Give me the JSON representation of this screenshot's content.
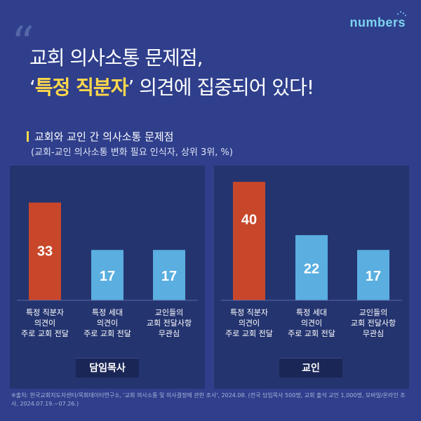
{
  "logo": {
    "text": "numbers"
  },
  "headline": {
    "quote_mark": "“",
    "line1": "교회 의사소통 문제점,",
    "line2_prefix": "‘",
    "line2_highlight": "특정 직분자",
    "line2_suffix": "’ 의견에 집중되어 있다!"
  },
  "section": {
    "title": "교회와 교인 간 의사소통 문제점",
    "subtitle": "(교회-교인 의사소통 변화 필요 인식자, 상위 3위, %)"
  },
  "colors": {
    "orange": "#c8472a",
    "blue": "#5aaee0",
    "background": "#2f3f8c",
    "panel": "#24346f",
    "highlight": "#ffd84a"
  },
  "chart_data": [
    {
      "type": "bar",
      "group": "담임목사",
      "categories": [
        "특정 직분자\n의견이\n주로 교회 전달",
        "특정 세대\n의견이\n주로 교회 전달",
        "교인들의\n교회 전달사항\n무관심"
      ],
      "values": [
        33,
        17,
        17
      ],
      "ylim": [
        0,
        45
      ]
    },
    {
      "type": "bar",
      "group": "교인",
      "categories": [
        "특정 직분자\n의견이\n주로 교회 전달",
        "특정 세대\n의견이\n주로 교회 전달",
        "교인들의\n교회 전달사항\n무관심"
      ],
      "values": [
        40,
        22,
        17
      ],
      "ylim": [
        0,
        45
      ]
    }
  ],
  "footnote": "※출처: 한국교회지도자센터/목회데이터연구소, '교회 의사소통 및 의사결정에 관한 조사', 2024.08. (전국 담임목사 500명, 교회 출석 교인 1,000명, 모바일/온라인 조사, 2024.07.19.~07.26.)"
}
